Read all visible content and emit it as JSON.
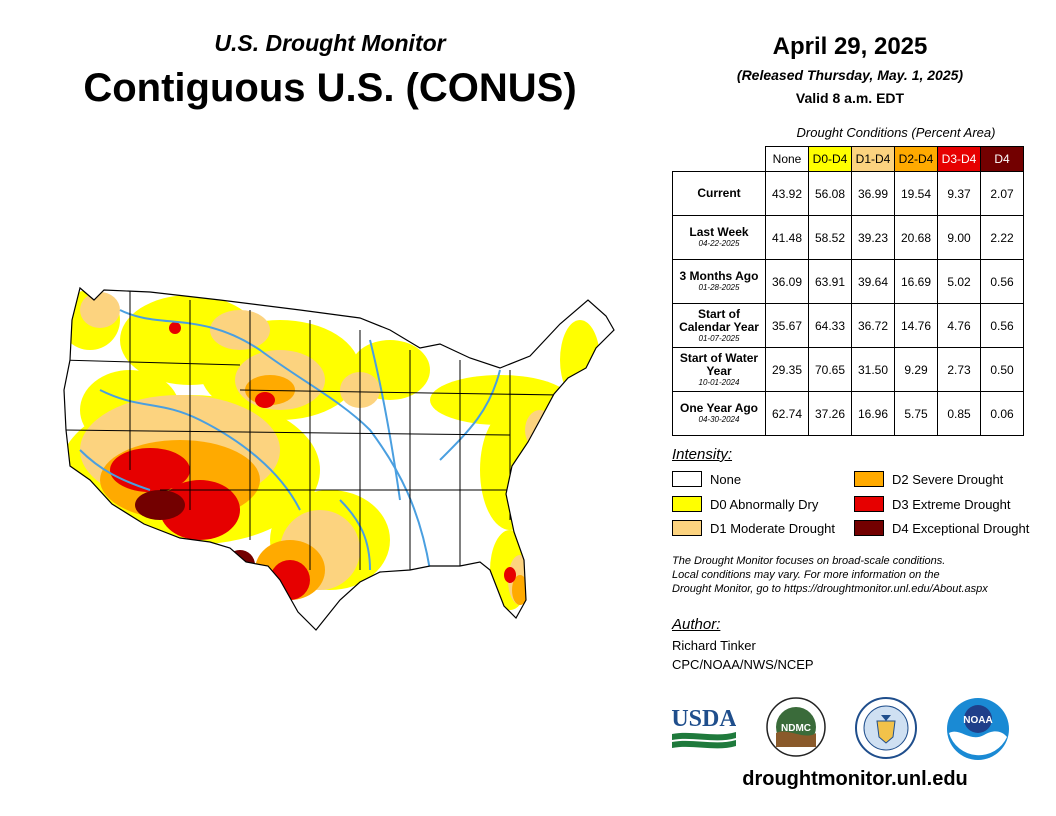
{
  "header": {
    "subtitle": "U.S. Drought Monitor",
    "title": "Contiguous U.S. (CONUS)",
    "date": "April 29, 2025",
    "released": "(Released Thursday, May. 1, 2025)",
    "valid": "Valid 8 a.m. EDT"
  },
  "table": {
    "caption": "Drought Conditions (Percent Area)",
    "columns": [
      "None",
      "D0-D4",
      "D1-D4",
      "D2-D4",
      "D3-D4",
      "D4"
    ],
    "rows": [
      {
        "label": "Current",
        "sub": "",
        "values": [
          "43.92",
          "56.08",
          "36.99",
          "19.54",
          "9.37",
          "2.07"
        ]
      },
      {
        "label": "Last Week",
        "sub": "04-22-2025",
        "values": [
          "41.48",
          "58.52",
          "39.23",
          "20.68",
          "9.00",
          "2.22"
        ]
      },
      {
        "label": "3 Months Ago",
        "sub": "01-28-2025",
        "values": [
          "36.09",
          "63.91",
          "39.64",
          "16.69",
          "5.02",
          "0.56"
        ]
      },
      {
        "label": "Start of Calendar Year",
        "sub": "01-07-2025",
        "values": [
          "35.67",
          "64.33",
          "36.72",
          "14.76",
          "4.76",
          "0.56"
        ]
      },
      {
        "label": "Start of Water Year",
        "sub": "10-01-2024",
        "values": [
          "29.35",
          "70.65",
          "31.50",
          "9.29",
          "2.73",
          "0.50"
        ]
      },
      {
        "label": "One Year Ago",
        "sub": "04-30-2024",
        "values": [
          "62.74",
          "37.26",
          "16.96",
          "5.75",
          "0.85",
          "0.06"
        ]
      }
    ]
  },
  "legend": {
    "heading": "Intensity:",
    "items": [
      {
        "label": "None",
        "color": "#ffffff"
      },
      {
        "label": "D0 Abnormally Dry",
        "color": "#ffff00"
      },
      {
        "label": "D1 Moderate Drought",
        "color": "#fcd37f"
      },
      {
        "label": "D2 Severe Drought",
        "color": "#ffaa00"
      },
      {
        "label": "D3 Extreme Drought",
        "color": "#e60000"
      },
      {
        "label": "D4 Exceptional Drought",
        "color": "#730000"
      }
    ]
  },
  "note": {
    "line1": "The Drought Monitor focuses on broad-scale conditions.",
    "line2": "Local conditions may vary. For more information on the",
    "line3": "Drought Monitor, go to https://droughtmonitor.unl.edu/About.aspx"
  },
  "author": {
    "heading": "Author:",
    "name": "Richard Tinker",
    "org": "CPC/NOAA/NWS/NCEP"
  },
  "logos": {
    "usda": "USDA",
    "ndmc": "NDMC",
    "noaa": "NOAA"
  },
  "website": "droughtmonitor.unl.edu",
  "map": {
    "colors": {
      "d0": "#ffff00",
      "d1": "#fcd37f",
      "d2": "#ffaa00",
      "d3": "#e60000",
      "d4": "#730000",
      "water": "#4a9fe0"
    }
  }
}
